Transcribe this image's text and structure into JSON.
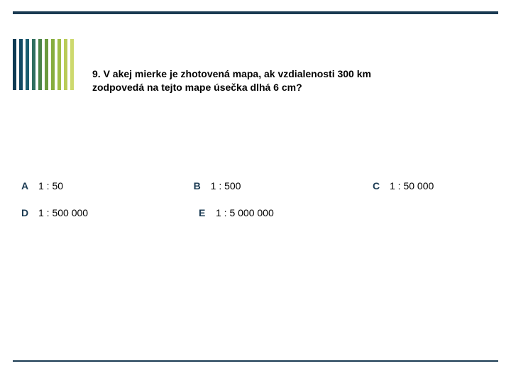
{
  "decoration": {
    "top_bar_color": "#1a3a52",
    "bottom_bar_color": "#1a3a52",
    "stripe_colors": [
      "#0f3b54",
      "#134a63",
      "#1a5d6f",
      "#2f6e5f",
      "#4a8347",
      "#6a9a3d",
      "#87ad3e",
      "#a0bd46",
      "#b9cc58",
      "#cdd96e"
    ]
  },
  "question": {
    "line1": "9. V akej mierke je zhotovená mapa, ak vzdialenosti 300 km",
    "line2": "zodpovedá na tejto mape úsečka dlhá 6 cm?"
  },
  "options": {
    "A": {
      "letter": "A",
      "text": "1 : 50"
    },
    "B": {
      "letter": "B",
      "text": "1 : 500"
    },
    "C": {
      "letter": "C",
      "text": "1 : 50 000"
    },
    "D": {
      "letter": "D",
      "text": "1 : 500 000"
    },
    "E": {
      "letter": "E",
      "text": "1 : 5 000 000"
    }
  }
}
